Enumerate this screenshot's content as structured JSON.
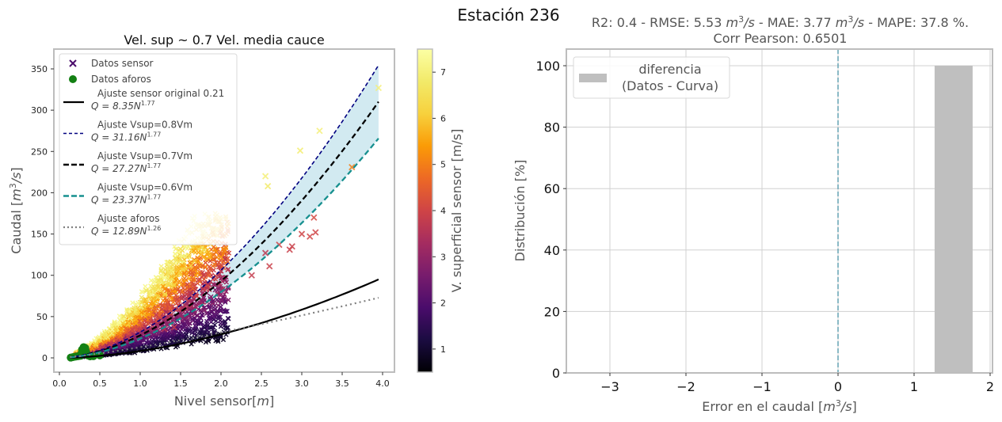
{
  "figure": {
    "suptitle": "Estación 236"
  },
  "chart_data": [
    {
      "type": "scatter",
      "title": "Vel. sup ~ 0.7 Vel. media cauce",
      "xlabel": "Nivel sensor[m]",
      "ylabel": "Caudal [m³/s]",
      "xlim": [
        -0.05,
        4.15
      ],
      "ylim": [
        -17,
        372
      ],
      "xticks": [
        "0.0",
        "0.5",
        "1.0",
        "1.5",
        "2.0",
        "2.5",
        "3.0",
        "3.5",
        "4.0"
      ],
      "xtick_values": [
        0.0,
        0.5,
        1.0,
        1.5,
        2.0,
        2.5,
        3.0,
        3.5,
        4.0
      ],
      "yticks": [
        "0",
        "50",
        "100",
        "150",
        "200",
        "250",
        "300",
        "350"
      ],
      "ytick_values": [
        0,
        50,
        100,
        150,
        200,
        250,
        300,
        350
      ],
      "grid": false,
      "legend_position": "top-left",
      "legend": [
        {
          "label": "Datos sensor",
          "marker": "x",
          "color": "#4b0c6b"
        },
        {
          "label": "Datos aforos",
          "marker": "o",
          "color": "#138013"
        },
        {
          "label": "Ajuste sensor original 0.21",
          "formula": "Q = 8.35N",
          "exp": "1.77",
          "style": "solid",
          "color": "#000000"
        },
        {
          "label": "Ajuste Vsup=0.8Vm",
          "formula": "Q = 31.16N",
          "exp": "1.77",
          "style": "dashed",
          "color": "#000080"
        },
        {
          "label": "Ajuste Vsup=0.7Vm",
          "formula": "Q = 27.27N",
          "exp": "1.77",
          "style": "dashed-bold",
          "color": "#000000"
        },
        {
          "label": "Ajuste Vsup=0.6Vm",
          "formula": "Q = 23.37N",
          "exp": "1.77",
          "style": "dashed-bold",
          "color": "#17908f"
        },
        {
          "label": "Ajuste aforos",
          "formula": "Q = 12.89N",
          "exp": "1.26",
          "style": "dotted",
          "color": "#808080"
        }
      ],
      "curves": [
        {
          "name": "original",
          "a": 8.35,
          "b": 1.77,
          "x_range": [
            0.13,
            3.95
          ]
        },
        {
          "name": "vsup08",
          "a": 31.16,
          "b": 1.77,
          "x_range": [
            0.13,
            3.95
          ]
        },
        {
          "name": "vsup07",
          "a": 27.27,
          "b": 1.77,
          "x_range": [
            0.13,
            3.95
          ]
        },
        {
          "name": "vsup06",
          "a": 23.37,
          "b": 1.77,
          "x_range": [
            0.13,
            3.95
          ]
        },
        {
          "name": "aforos",
          "a": 12.89,
          "b": 1.26,
          "x_range": [
            0.13,
            3.95
          ]
        }
      ],
      "band": {
        "between": [
          "vsup08",
          "vsup06"
        ],
        "color": "#add8e6"
      },
      "outlier_points": [
        {
          "x": 3.95,
          "y": 327,
          "v": 7.0
        },
        {
          "x": 3.22,
          "y": 275,
          "v": 7.0
        },
        {
          "x": 2.98,
          "y": 251,
          "v": 6.9
        },
        {
          "x": 2.55,
          "y": 220,
          "v": 7.0
        },
        {
          "x": 2.58,
          "y": 208,
          "v": 6.8
        },
        {
          "x": 3.62,
          "y": 231,
          "v": 5.0
        },
        {
          "x": 3.15,
          "y": 170,
          "v": 4.1
        },
        {
          "x": 3.1,
          "y": 147,
          "v": 4.0
        },
        {
          "x": 3.17,
          "y": 152,
          "v": 4.0
        },
        {
          "x": 3.0,
          "y": 150,
          "v": 4.0
        },
        {
          "x": 2.88,
          "y": 135,
          "v": 3.9
        },
        {
          "x": 2.85,
          "y": 131,
          "v": 3.9
        },
        {
          "x": 2.6,
          "y": 111,
          "v": 3.9
        },
        {
          "x": 2.55,
          "y": 127,
          "v": 3.7
        },
        {
          "x": 2.72,
          "y": 137,
          "v": 4.0
        },
        {
          "x": 2.38,
          "y": 100,
          "v": 3.8
        },
        {
          "x": 2.05,
          "y": 130,
          "v": 5.2
        },
        {
          "x": 2.0,
          "y": 122,
          "v": 5.3
        },
        {
          "x": 1.72,
          "y": 137,
          "v": 5.8
        },
        {
          "x": 1.75,
          "y": 125,
          "v": 5.7
        },
        {
          "x": 1.42,
          "y": 37,
          "v": 3.8
        },
        {
          "x": 1.3,
          "y": 35,
          "v": 3.6
        }
      ],
      "aforos_points": [
        {
          "x": 0.14,
          "y": 0.3
        },
        {
          "x": 0.17,
          "y": 1.0
        },
        {
          "x": 0.2,
          "y": 1.5
        },
        {
          "x": 0.23,
          "y": 2.0
        },
        {
          "x": 0.26,
          "y": 2.5
        },
        {
          "x": 0.28,
          "y": 10
        },
        {
          "x": 0.3,
          "y": 13
        },
        {
          "x": 0.32,
          "y": 12
        },
        {
          "x": 0.35,
          "y": 3
        },
        {
          "x": 0.38,
          "y": 1.8
        },
        {
          "x": 0.42,
          "y": 2.0
        },
        {
          "x": 0.5,
          "y": 3.0
        },
        {
          "x": 0.27,
          "y": 5
        },
        {
          "x": 0.33,
          "y": 8
        }
      ],
      "colorbar": {
        "label": "V. superficial sensor [m/s]",
        "cmap": "inferno",
        "range": [
          0.5,
          7.5
        ],
        "ticks": [
          "1",
          "2",
          "3",
          "4",
          "5",
          "6",
          "7"
        ],
        "tick_values": [
          1,
          2,
          3,
          4,
          5,
          6,
          7
        ]
      }
    },
    {
      "type": "bar",
      "title": "R2: 0.4 - RMSE: 5.53 m³/s - MAE: 3.77 m³/s - MAPE: 37.8 %.",
      "subtitle": "Corr Pearson: 0.6501",
      "title_parts": {
        "r2": "R2: 0.4 - RMSE: 5.53 ",
        "unit1": "m",
        "sup1": "3",
        "s1": "/s",
        "mid": " - MAE: 3.77 ",
        "unit2": "m",
        "sup2": "3",
        "s2": "/s",
        "end": " - MAPE: 37.8 %."
      },
      "xlabel": "Error en el caudal  [m³/s]",
      "ylabel": "Distribución [%]",
      "xlim": [
        -3.57,
        2.03
      ],
      "ylim": [
        0,
        105
      ],
      "xticks": [
        "−3",
        "−2",
        "−1",
        "0",
        "1",
        "2"
      ],
      "xtick_values": [
        -3,
        -2,
        -1,
        0,
        1,
        2
      ],
      "yticks": [
        "0",
        "20",
        "40",
        "60",
        "80",
        "100"
      ],
      "ytick_values": [
        0,
        20,
        40,
        60,
        80,
        100
      ],
      "grid": true,
      "bins": [
        {
          "x0": 1.27,
          "x1": 1.77,
          "value": 100
        }
      ],
      "bar_color": "#bfbfbf",
      "vline": {
        "x": 0,
        "color": "#6ea8b8",
        "style": "dashed"
      },
      "legend_position": "top-left",
      "legend": [
        {
          "label_line1": "diferencia",
          "label_line2": "(Datos - Curva)",
          "color": "#bfbfbf"
        }
      ]
    }
  ]
}
